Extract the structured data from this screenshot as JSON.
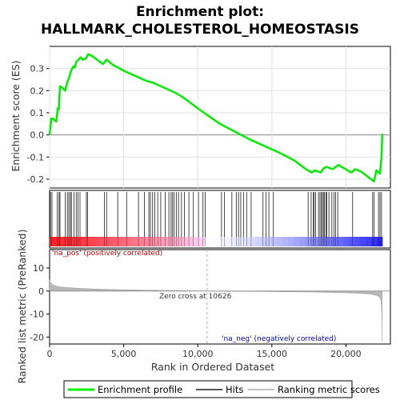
{
  "chart_data": {
    "type": "line",
    "title": [
      "Enrichment plot:",
      "HALLMARK_CHOLESTEROL_HOMEOSTASIS"
    ],
    "es_panel": {
      "ylabel": "Enrichment score (ES)",
      "ylim": [
        -0.24,
        0.4
      ],
      "yticks": [
        -0.2,
        -0.1,
        0.0,
        0.1,
        0.2,
        0.3
      ],
      "ytick_labels": [
        "-0.2",
        "-0.1",
        "0.0",
        "0.1",
        "0.2",
        "0.3"
      ],
      "grid": true,
      "series": [
        {
          "name": "Enrichment profile",
          "color": "#00ee00",
          "x": [
            0,
            120,
            250,
            450,
            550,
            620,
            700,
            900,
            1050,
            1200,
            1300,
            1450,
            1600,
            1700,
            1800,
            1950,
            2100,
            2250,
            2450,
            2600,
            2900,
            3300,
            3600,
            3850,
            4300,
            4600,
            5000,
            5500,
            6000,
            6500,
            7000,
            7500,
            8000,
            8500,
            9000,
            9500,
            10000,
            10626,
            11500,
            12500,
            13500,
            14500,
            15500,
            16500,
            17300,
            17700,
            17900,
            18100,
            18300,
            18500,
            18700,
            18900,
            19100,
            19300,
            19500,
            19700,
            20000,
            20200,
            20400,
            20600,
            21000,
            21500,
            21900,
            22050,
            22200,
            22300,
            22400,
            22450
          ],
          "y": [
            0.0,
            0.075,
            0.072,
            0.06,
            0.12,
            0.115,
            0.22,
            0.21,
            0.2,
            0.24,
            0.255,
            0.29,
            0.31,
            0.305,
            0.33,
            0.34,
            0.35,
            0.34,
            0.345,
            0.365,
            0.355,
            0.335,
            0.32,
            0.34,
            0.315,
            0.305,
            0.29,
            0.275,
            0.26,
            0.245,
            0.235,
            0.22,
            0.205,
            0.19,
            0.17,
            0.145,
            0.12,
            0.09,
            0.05,
            0.015,
            -0.02,
            -0.05,
            -0.08,
            -0.115,
            -0.155,
            -0.17,
            -0.16,
            -0.165,
            -0.17,
            -0.15,
            -0.145,
            -0.15,
            -0.155,
            -0.145,
            -0.135,
            -0.145,
            -0.155,
            -0.165,
            -0.17,
            -0.155,
            -0.165,
            -0.19,
            -0.21,
            -0.16,
            -0.17,
            -0.175,
            -0.1,
            0.005
          ]
        }
      ]
    },
    "hits_panel": {
      "name": "Hits",
      "hit_ranks": [
        60,
        160,
        520,
        640,
        700,
        1060,
        1200,
        1300,
        1400,
        1470,
        1650,
        1800,
        1920,
        2050,
        2480,
        2560,
        3700,
        3850,
        4600,
        5200,
        6000,
        6400,
        6700,
        6800,
        6950,
        7100,
        7300,
        7500,
        7800,
        8050,
        8200,
        8300,
        8400,
        8550,
        8700,
        8900,
        9100,
        9400,
        9700,
        10050,
        10350,
        10500,
        11600,
        11800,
        12300,
        12600,
        12750,
        12900,
        13100,
        13300,
        13600,
        14400,
        14600,
        14800,
        15100,
        17450,
        17650,
        17800,
        17850,
        17950,
        18150,
        18250,
        18350,
        18400,
        18500,
        18550,
        18650,
        18700,
        18850,
        19050,
        19200,
        19300,
        19450,
        20450,
        21800,
        21900,
        22200,
        22300,
        22400
      ]
    },
    "ranked_panel": {
      "name": "Ranking metric scores",
      "ylabel": "Ranked list metric (PreRanked)",
      "ylim": [
        -23,
        18
      ],
      "yticks": [
        -20,
        -10,
        0,
        10
      ],
      "ytick_labels": [
        "-20",
        "-10",
        "0",
        "10"
      ],
      "x": [
        0,
        50,
        200,
        500,
        1000,
        2000,
        3000,
        4000,
        5000,
        7000,
        9000,
        10626,
        12000,
        14000,
        16000,
        18000,
        19500,
        20500,
        21200,
        21700,
        22000,
        22200,
        22300,
        22380,
        22420,
        22450
      ],
      "values": [
        5.0,
        3.8,
        2.8,
        2.0,
        1.6,
        1.2,
        0.9,
        0.7,
        0.55,
        0.35,
        0.15,
        0.0,
        -0.1,
        -0.2,
        -0.3,
        -0.45,
        -0.7,
        -0.9,
        -1.1,
        -1.4,
        -1.8,
        -2.3,
        -3.0,
        -4.5,
        -9.0,
        -22.0
      ],
      "pos_label": "'na_pos' (positively correlated)",
      "neg_label": "'na_neg' (negatively correlated)",
      "zero_cross_label": "Zero cross at 10626",
      "zero_cross_rank": 10626
    },
    "xaxis": {
      "label": "Rank in Ordered Dataset",
      "xlim": [
        0,
        23000
      ],
      "xticks": [
        0,
        5000,
        10000,
        15000,
        20000
      ],
      "xtick_labels": [
        "0",
        "5,000",
        "10,000",
        "15,000",
        "20,000"
      ],
      "n_ranks": 22450
    },
    "legend": {
      "placement": "bottom",
      "entries": [
        {
          "label": "Enrichment profile",
          "color": "#00ee00"
        },
        {
          "label": "Hits",
          "color": "#555555"
        },
        {
          "label": "Ranking metric scores",
          "color": "#c0c0c0"
        }
      ]
    },
    "colors": {
      "pos_text": "#cc0000",
      "neg_text": "#0000cc",
      "heat_pos": "#ff0000",
      "heat_neg": "#0000ff"
    }
  }
}
